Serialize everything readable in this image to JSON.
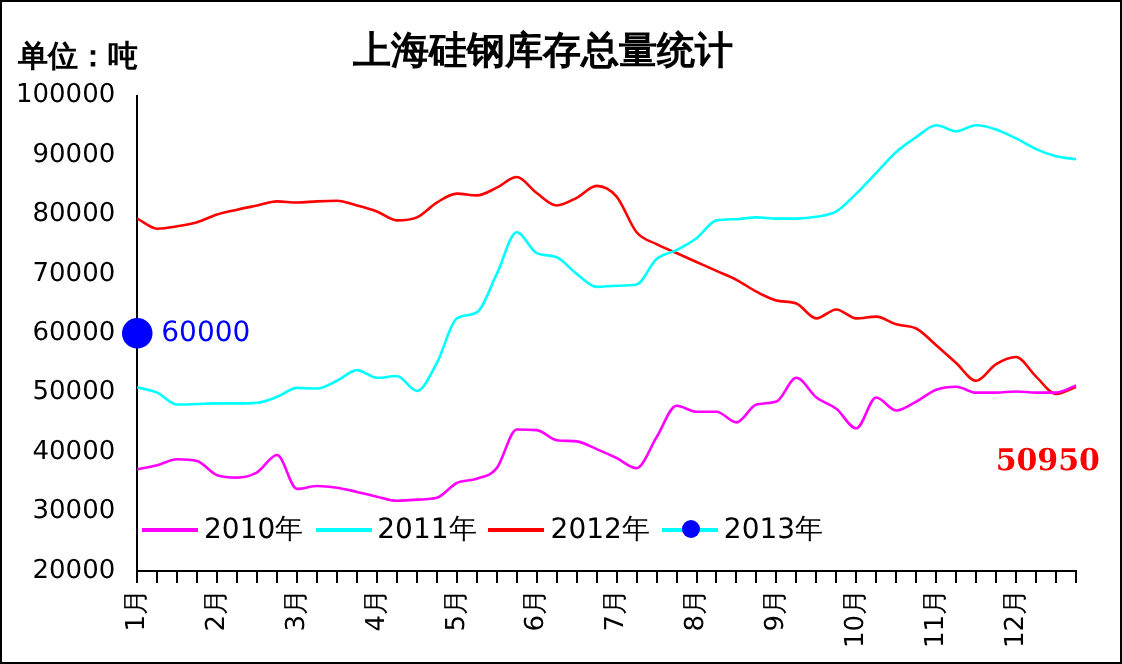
{
  "chart_data": {
    "type": "line",
    "title": "上海硅钢库存总量统计",
    "ylabel": "单位：吨",
    "categories": [
      "1月",
      null,
      null,
      null,
      "2月",
      null,
      null,
      null,
      "3月",
      null,
      null,
      null,
      "4月",
      null,
      null,
      null,
      "5月",
      null,
      null,
      null,
      "6月",
      null,
      null,
      null,
      "7月",
      null,
      null,
      null,
      "8月",
      null,
      null,
      null,
      "9月",
      null,
      null,
      null,
      "10月",
      null,
      null,
      null,
      "11月",
      null,
      null,
      null,
      "12月",
      null,
      null,
      null
    ],
    "ylim": [
      20000,
      100000
    ],
    "yticks": [
      20000,
      30000,
      40000,
      50000,
      60000,
      70000,
      80000,
      90000,
      100000
    ],
    "grid": false,
    "legend": "bottom",
    "marker": "none",
    "series": [
      {
        "name": "2010年",
        "color": "#ff00ff",
        "values": [
          37100,
          37800,
          38800,
          38500,
          36100,
          35700,
          36600,
          39500,
          33800,
          34300,
          34000,
          33300,
          32500,
          31800,
          32000,
          32300,
          34800,
          35500,
          37300,
          43800,
          43700,
          42000,
          41800,
          40500,
          39000,
          37300,
          42500,
          47800,
          46800,
          46800,
          45000,
          48000,
          48500,
          52500,
          49200,
          47300,
          44000,
          49200,
          47000,
          48500,
          50500,
          51000,
          50000,
          50000,
          50200,
          50000,
          50000,
          51200
        ]
      },
      {
        "name": "2011年",
        "color": "#00ffff",
        "values": [
          50900,
          50000,
          48000,
          48100,
          48200,
          48200,
          48300,
          49300,
          50800,
          50700,
          52000,
          53800,
          52500,
          52800,
          50300,
          55000,
          62500,
          63500,
          70000,
          77000,
          73500,
          72800,
          70000,
          67800,
          68000,
          68200,
          72500,
          74000,
          76000,
          79000,
          79200,
          79500,
          79300,
          79300,
          79600,
          80500,
          83500,
          87000,
          90500,
          93000,
          95000,
          94000,
          95000,
          94300,
          92800,
          91000,
          89800,
          89300
        ]
      },
      {
        "name": "2012年",
        "color": "#ff0000",
        "values": [
          79300,
          77600,
          78000,
          78700,
          80000,
          80800,
          81500,
          82200,
          82000,
          82200,
          82300,
          81500,
          80500,
          79000,
          79500,
          82000,
          83500,
          83200,
          84500,
          86300,
          83600,
          81500,
          82800,
          84800,
          83000,
          77000,
          75000,
          73500,
          72000,
          70500,
          69000,
          67000,
          65500,
          65000,
          62500,
          64000,
          62500,
          62800,
          61500,
          60800,
          58000,
          55000,
          52000,
          54800,
          56000,
          52700,
          49800,
          50950
        ],
        "value_labels": [
          null,
          null,
          null,
          null,
          null,
          null,
          null,
          null,
          null,
          null,
          null,
          null,
          null,
          null,
          null,
          null,
          null,
          null,
          null,
          null,
          null,
          null,
          null,
          null,
          null,
          null,
          null,
          null,
          null,
          null,
          null,
          null,
          null,
          null,
          null,
          null,
          null,
          null,
          null,
          null,
          null,
          null,
          null,
          null,
          null,
          null,
          null,
          "50950"
        ]
      },
      {
        "name": "2013年",
        "color": "#00ffff",
        "marker": "circle",
        "colors": [
          "#0000ff",
          "#0000ff",
          "#0000ff",
          "#0000ff",
          "#0000ff",
          "#0000ff",
          "#0000ff",
          "#0000ff",
          "#0000ff",
          "#0000ff",
          "#0000ff",
          "#0000ff",
          "#0000ff",
          "#0000ff",
          "#0000ff",
          "#0000ff",
          "#0000ff",
          "#0000ff",
          "#0000ff",
          "#0000ff",
          "#0000ff",
          "#0000ff",
          "#0000ff",
          "#0000ff",
          "#0000ff",
          "#0000ff",
          "#0000ff",
          "#0000ff",
          "#0000ff",
          "#0000ff",
          "#0000ff",
          "#0000ff",
          "#0000ff",
          "#0000ff",
          "#0000ff",
          "#0000ff",
          "#0000ff",
          "#0000ff",
          "#0000ff",
          "#0000ff",
          "#0000ff",
          "#0000ff",
          "#0000ff",
          "#0000ff",
          "#0000ff",
          "#0000ff",
          "#0000ff",
          "#0000ff"
        ],
        "values": [
          60000,
          null,
          null,
          null,
          null,
          null,
          null,
          null,
          null,
          null,
          null,
          null,
          null,
          null,
          null,
          null,
          null,
          null,
          null,
          null,
          null,
          null,
          null,
          null,
          null,
          null,
          null,
          null,
          null,
          null,
          null,
          null,
          null,
          null,
          null,
          null,
          null,
          null,
          null,
          null,
          null,
          null,
          null,
          null,
          null,
          null,
          null,
          null
        ],
        "value_labels": [
          "60000",
          null,
          null,
          null,
          null,
          null,
          null,
          null,
          null,
          null,
          null,
          null,
          null,
          null,
          null,
          null,
          null,
          null,
          null,
          null,
          null,
          null,
          null,
          null,
          null,
          null,
          null,
          null,
          null,
          null,
          null,
          null,
          null,
          null,
          null,
          null,
          null,
          null,
          null,
          null,
          null,
          null,
          null,
          null,
          null,
          null,
          null,
          null
        ]
      }
    ]
  }
}
